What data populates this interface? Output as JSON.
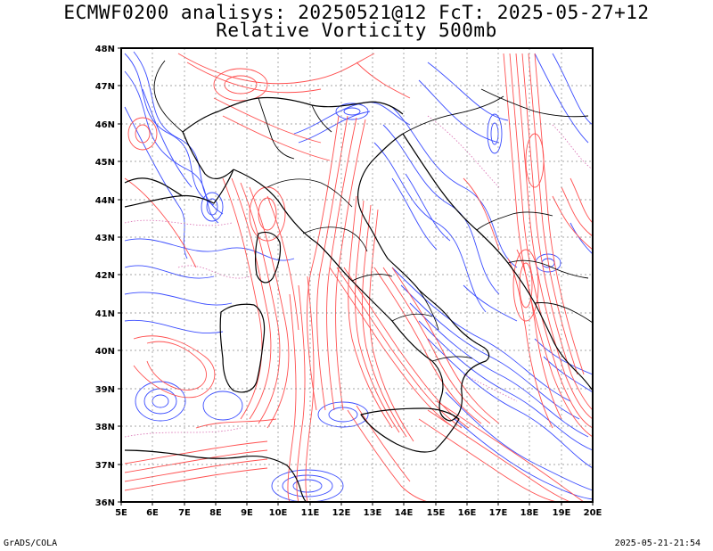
{
  "header": {
    "title_line1": "ECMWF0200 analisys: 20250521@12 FcT: 2025-05-27+12",
    "title_line2": "Relative Vorticity 500mb"
  },
  "axes": {
    "lon_labels": [
      "5E",
      "6E",
      "7E",
      "8E",
      "9E",
      "10E",
      "11E",
      "12E",
      "13E",
      "14E",
      "15E",
      "16E",
      "17E",
      "18E",
      "19E",
      "20E"
    ],
    "lat_labels": [
      "48N",
      "47N",
      "46N",
      "45N",
      "44N",
      "43N",
      "42N",
      "41N",
      "40N",
      "39N",
      "38N",
      "37N",
      "36N"
    ],
    "lon_range": [
      5,
      20
    ],
    "lat_range": [
      36,
      48
    ]
  },
  "colors": {
    "positive_contour": "#ff5050",
    "negative_contour": "#3a4cff",
    "coastline": "#000000",
    "grid": "#888888"
  },
  "footer": {
    "left": "GrADS/COLA",
    "right": "2025-05-21-21:54"
  }
}
